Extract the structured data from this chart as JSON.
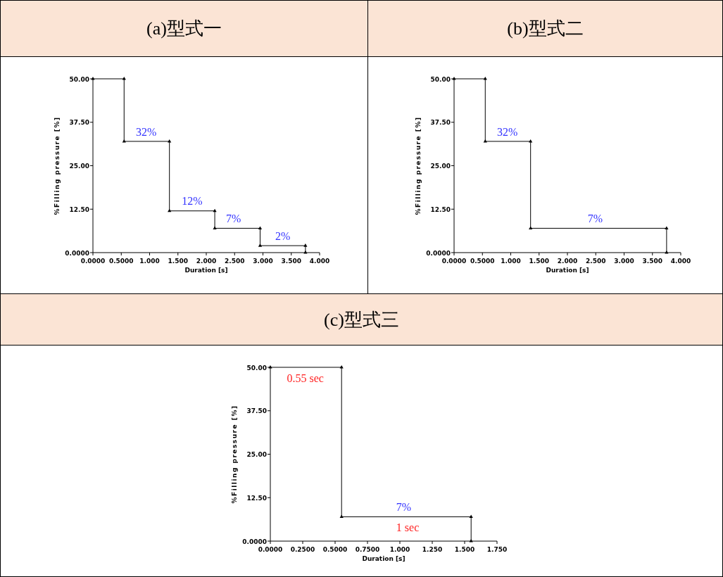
{
  "chart_data": [
    {
      "type": "line",
      "title": "(a)型式一",
      "xlabel": "Duration [s]",
      "ylabel": "%Filling pressure [%]",
      "marker": "triangle",
      "line_style": "solid",
      "grid": false,
      "series": [
        {
          "color": "#000000",
          "x": [
            0,
            0.55,
            0.55,
            1.35,
            1.35,
            2.15,
            2.15,
            2.95,
            2.95,
            3.75,
            3.75
          ],
          "values": [
            50,
            50,
            32,
            32,
            12,
            12,
            7,
            7,
            2,
            2,
            0
          ]
        }
      ],
      "xlim": [
        0,
        4
      ],
      "ylim": [
        0,
        50
      ],
      "xticks": [
        {
          "value": 0,
          "label": "0.0000"
        },
        {
          "value": 0.5,
          "label": "0.5000"
        },
        {
          "value": 1,
          "label": "1.000"
        },
        {
          "value": 1.5,
          "label": "1.500"
        },
        {
          "value": 2,
          "label": "2.000"
        },
        {
          "value": 2.5,
          "label": "2.500"
        },
        {
          "value": 3,
          "label": "3.000"
        },
        {
          "value": 3.5,
          "label": "3.500"
        },
        {
          "value": 4,
          "label": "4.000"
        }
      ],
      "yticks": [
        {
          "value": 0,
          "label": "0.0000"
        },
        {
          "value": 12.5,
          "label": "12.50"
        },
        {
          "value": 25,
          "label": "25.00"
        },
        {
          "value": 37.5,
          "label": "37.50"
        },
        {
          "value": 50,
          "label": "50.00"
        }
      ],
      "annotations": [
        {
          "text": "32%",
          "x": 0.94,
          "y": 32
        },
        {
          "text": "12%",
          "x": 1.75,
          "y": 12
        },
        {
          "text": "7%",
          "x": 2.48,
          "y": 7
        },
        {
          "text": "2%",
          "x": 3.35,
          "y": 2
        }
      ]
    },
    {
      "type": "line",
      "title": "(b)型式二",
      "xlabel": "Duration [s]",
      "ylabel": "%Filling pressure [%]",
      "marker": "triangle",
      "line_style": "solid",
      "grid": false,
      "series": [
        {
          "color": "#000000",
          "x": [
            0,
            0.55,
            0.55,
            1.35,
            1.35,
            3.75,
            3.75
          ],
          "values": [
            50,
            50,
            32,
            32,
            7,
            7,
            0
          ]
        }
      ],
      "xlim": [
        0,
        4
      ],
      "ylim": [
        0,
        50
      ],
      "xticks": [
        {
          "value": 0,
          "label": "0.0000"
        },
        {
          "value": 0.5,
          "label": "0.5000"
        },
        {
          "value": 1,
          "label": "1.000"
        },
        {
          "value": 1.5,
          "label": "1.500"
        },
        {
          "value": 2,
          "label": "2.000"
        },
        {
          "value": 2.5,
          "label": "2.500"
        },
        {
          "value": 3,
          "label": "3.000"
        },
        {
          "value": 3.5,
          "label": "3.500"
        },
        {
          "value": 4,
          "label": "4.000"
        }
      ],
      "yticks": [
        {
          "value": 0,
          "label": "0.0000"
        },
        {
          "value": 12.5,
          "label": "12.50"
        },
        {
          "value": 25,
          "label": "25.00"
        },
        {
          "value": 37.5,
          "label": "37.50"
        },
        {
          "value": 50,
          "label": "50.00"
        }
      ],
      "annotations": [
        {
          "text": "32%",
          "x": 0.94,
          "y": 32
        },
        {
          "text": "7%",
          "x": 2.49,
          "y": 7
        }
      ]
    },
    {
      "type": "line",
      "title": "(c)型式三",
      "xlabel": "Duration [s]",
      "ylabel": "%Filling pressure [%]",
      "marker": "triangle",
      "line_style": "solid",
      "grid": false,
      "series": [
        {
          "color": "#000000",
          "x": [
            0,
            0.55,
            0.55,
            1.55,
            1.55
          ],
          "values": [
            50,
            50,
            7,
            7,
            0
          ]
        }
      ],
      "xlim": [
        0,
        1.75
      ],
      "ylim": [
        0,
        50
      ],
      "xticks": [
        {
          "value": 0,
          "label": "0.0000"
        },
        {
          "value": 0.25,
          "label": "0.2500"
        },
        {
          "value": 0.5,
          "label": "0.5000"
        },
        {
          "value": 0.75,
          "label": "0.7500"
        },
        {
          "value": 1,
          "label": "1.000"
        },
        {
          "value": 1.25,
          "label": "1.250"
        },
        {
          "value": 1.5,
          "label": "1.500"
        },
        {
          "value": 1.75,
          "label": "1.750"
        }
      ],
      "yticks": [
        {
          "value": 0,
          "label": "0.0000"
        },
        {
          "value": 12.5,
          "label": "12.50"
        },
        {
          "value": 25,
          "label": "25.00"
        },
        {
          "value": 37.5,
          "label": "37.50"
        },
        {
          "value": 50,
          "label": "50.00"
        }
      ],
      "annotations": [
        {
          "text": "0.55 sec",
          "x": 0.27,
          "y": 50
        },
        {
          "text": "7%",
          "x": 1.03,
          "y": 7
        },
        {
          "text": "1 sec",
          "x": 1.06,
          "y": 7
        }
      ]
    }
  ]
}
